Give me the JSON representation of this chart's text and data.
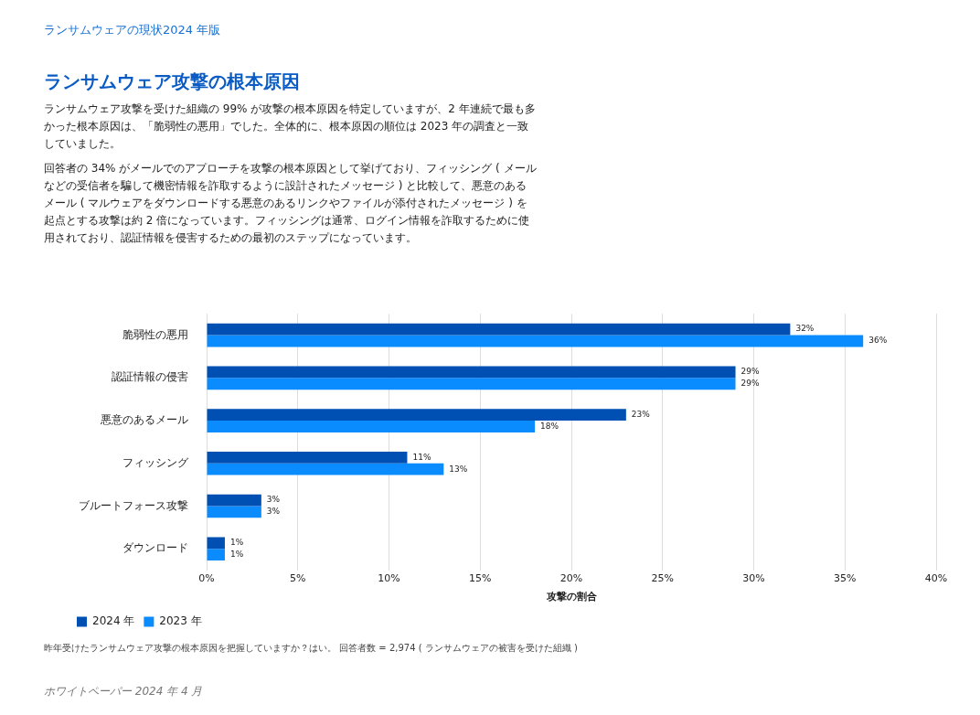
{
  "chart_data": {
    "type": "bar",
    "orientation": "horizontal",
    "title": "ランサムウェア攻撃の根本原因",
    "annotations": [
      "ランサムウェアの現状2024 年版",
      "ランサムウェア攻撃を受けた組織の 99% が攻撃の根本原因を特定していますが、2 年連続で最も多かった根本原因は、「脆弱性の悪用」でした。全体的に、根本原因の順位は 2023 年の調査と一致していました。",
      "回答者の 34% がメールでのアプローチを攻撃の根本原因として挙げており、フィッシング ( メールなどの受信者を騙して機密情報を詐取するように設計されたメッセージ ) と比較して、悪意のあるメール ( マルウェアをダウンロードする悪意のあるリンクやファイルが添付されたメッセージ ) を起点とする攻撃は約 2 倍になっています。フィッシングは通常、ログイン情報を詐取するために使用されており、認証情報を侵害するための最初のステップになっています。",
      "昨年受けたランサムウェア攻撃の根本原因を把握していますか？はい。 回答者数 = 2,974 ( ランサムウェアの被害を受けた組織 )",
      "ホワイトペーパー 2024 年 4 月"
    ],
    "xlabel": "攻撃の割合",
    "categories": [
      "脆弱性の悪用",
      "認証情報の侵害",
      "悪意のあるメール",
      "フィッシング",
      "ブルートフォース攻撃",
      "ダウンロード"
    ],
    "series": [
      {
        "name": "2024 年",
        "color": "#0050b4",
        "values": [
          32,
          29,
          23,
          11,
          3,
          1
        ],
        "value_labels": [
          "32%",
          "29%",
          "23%",
          "11%",
          "3%",
          "1%"
        ]
      },
      {
        "name": "2023 年",
        "color": "#0a8cff",
        "values": [
          36,
          29,
          18,
          13,
          3,
          1
        ],
        "value_labels": [
          "36%",
          "29%",
          "18%",
          "13%",
          "3%",
          "1%"
        ]
      }
    ],
    "xlim": [
      0,
      40
    ],
    "xticks": [
      {
        "value": 0,
        "label": "0%"
      },
      {
        "value": 5,
        "label": "5%"
      },
      {
        "value": 10,
        "label": "10%"
      },
      {
        "value": 15,
        "label": "15%"
      },
      {
        "value": 20,
        "label": "20%"
      },
      {
        "value": 25,
        "label": "25%"
      },
      {
        "value": 30,
        "label": "30%"
      },
      {
        "value": 35,
        "label": "35%"
      },
      {
        "value": 40,
        "label": "40%"
      }
    ],
    "grid": "x",
    "legend": "bottom left"
  }
}
